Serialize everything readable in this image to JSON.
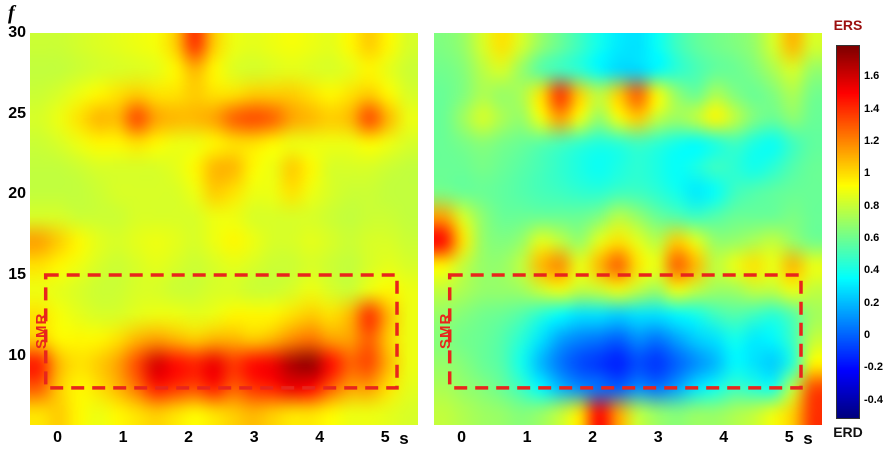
{
  "figure": {
    "y_axis_title": "f",
    "x_axis_unit": "s",
    "annotation": {
      "label": "SMR",
      "color": "#e8251c",
      "box_t": [
        -0.18,
        5.18
      ],
      "box_f": [
        8,
        15
      ]
    },
    "colorbar": {
      "top_label": "ERS",
      "bottom_label": "ERD",
      "top_label_color": "#9b0f0f",
      "bottom_label_color": "#111111",
      "tick_labels": [
        "1.6",
        "1.4",
        "1.2",
        "1",
        "0.8",
        "0.6",
        "0.4",
        "0.2",
        "0",
        "-0.2",
        "-0.4"
      ],
      "tick_values": [
        1.6,
        1.4,
        1.2,
        1,
        0.8,
        0.6,
        0.4,
        0.2,
        0,
        -0.2,
        -0.4
      ],
      "range": [
        -0.5,
        1.8
      ]
    }
  },
  "chart_data": {
    "type": "heatmap",
    "colormap": "jet",
    "x_tick_labels": [
      "0",
      "1",
      "2",
      "3",
      "4",
      "5"
    ],
    "x_tick_values": [
      0,
      1,
      2,
      3,
      4,
      5
    ],
    "y_tick_labels": [
      "30",
      "25",
      "20",
      "15",
      "10"
    ],
    "y_tick_values": [
      30,
      25,
      20,
      15,
      10
    ],
    "x_range": [
      -0.42,
      5.5
    ],
    "y_range": [
      5.7,
      30
    ],
    "value_range": [
      -0.5,
      1.8
    ],
    "grid_t": [
      -0.4,
      -0.1,
      0.2,
      0.5,
      0.8,
      1.1,
      1.4,
      1.7,
      2.0,
      2.3,
      2.6,
      2.9,
      3.2,
      3.5,
      3.8,
      4.1,
      4.4,
      4.7,
      5.0,
      5.3
    ],
    "grid_f": [
      30,
      28.5,
      27,
      25.5,
      24,
      22.5,
      21,
      19.5,
      18,
      16.5,
      15,
      13.5,
      12,
      10.5,
      9,
      7.5
    ],
    "panels": [
      {
        "name": "left-ers",
        "values": [
          [
            0.82,
            0.82,
            0.84,
            0.86,
            0.88,
            0.9,
            0.92,
            1.05,
            1.4,
            1.05,
            0.9,
            0.88,
            0.9,
            0.92,
            0.9,
            0.88,
            0.95,
            1.05,
            0.95,
            0.85
          ],
          [
            0.8,
            0.8,
            0.82,
            0.84,
            0.85,
            0.86,
            0.88,
            0.95,
            1.1,
            0.95,
            0.86,
            0.84,
            0.86,
            0.88,
            0.86,
            0.85,
            0.88,
            0.95,
            0.88,
            0.82
          ],
          [
            0.82,
            0.85,
            0.9,
            0.95,
            1.0,
            1.05,
            1.0,
            1.0,
            1.05,
            1.0,
            1.0,
            1.05,
            1.05,
            1.05,
            1.0,
            0.95,
            1.0,
            1.05,
            0.95,
            0.85
          ],
          [
            0.85,
            0.9,
            1.0,
            1.1,
            1.1,
            1.35,
            1.15,
            1.1,
            1.1,
            1.15,
            1.3,
            1.35,
            1.3,
            1.15,
            1.1,
            1.05,
            1.1,
            1.35,
            1.1,
            0.9
          ],
          [
            0.82,
            0.85,
            0.9,
            0.95,
            0.95,
            1.0,
            0.95,
            0.9,
            0.9,
            0.95,
            1.0,
            1.0,
            0.95,
            0.9,
            0.9,
            0.9,
            0.9,
            0.95,
            0.9,
            0.85
          ],
          [
            0.8,
            0.8,
            0.82,
            0.85,
            0.85,
            0.85,
            0.85,
            0.88,
            0.95,
            1.1,
            1.1,
            0.95,
            0.9,
            1.05,
            0.95,
            0.85,
            0.85,
            0.85,
            0.82,
            0.8
          ],
          [
            0.8,
            0.8,
            0.8,
            0.82,
            0.85,
            0.85,
            0.85,
            0.85,
            0.9,
            1.05,
            1.0,
            0.9,
            0.9,
            1.0,
            0.9,
            0.85,
            0.82,
            0.82,
            0.8,
            0.8
          ],
          [
            0.85,
            0.85,
            0.82,
            0.82,
            0.82,
            0.85,
            0.85,
            0.85,
            0.85,
            0.9,
            0.9,
            0.85,
            0.85,
            0.85,
            0.85,
            0.82,
            0.8,
            0.82,
            0.82,
            0.8
          ],
          [
            1.15,
            1.05,
            0.95,
            0.88,
            0.85,
            0.88,
            0.9,
            0.88,
            0.85,
            0.9,
            0.95,
            0.9,
            0.85,
            0.85,
            0.88,
            0.85,
            0.82,
            0.85,
            0.85,
            0.82
          ],
          [
            1.0,
            0.95,
            0.9,
            0.85,
            0.82,
            0.85,
            0.88,
            0.85,
            0.82,
            0.85,
            0.88,
            0.85,
            0.82,
            0.82,
            0.85,
            0.82,
            0.8,
            0.85,
            0.88,
            0.85
          ],
          [
            0.9,
            0.88,
            0.85,
            0.82,
            0.82,
            0.85,
            0.85,
            0.82,
            0.82,
            0.85,
            0.85,
            0.82,
            0.82,
            0.85,
            0.9,
            0.85,
            0.82,
            0.9,
            0.95,
            0.9
          ],
          [
            1.0,
            0.92,
            0.88,
            0.85,
            0.85,
            0.88,
            0.9,
            0.9,
            0.88,
            0.9,
            0.95,
            0.95,
            0.95,
            1.0,
            1.05,
            1.0,
            1.1,
            1.4,
            1.1,
            0.9
          ],
          [
            1.05,
            0.95,
            0.95,
            0.95,
            1.0,
            1.1,
            1.15,
            1.1,
            1.05,
            1.1,
            1.1,
            1.05,
            1.1,
            1.2,
            1.25,
            1.15,
            1.15,
            1.3,
            1.05,
            0.9
          ],
          [
            1.45,
            1.1,
            1.0,
            1.05,
            1.15,
            1.35,
            1.6,
            1.5,
            1.45,
            1.55,
            1.4,
            1.5,
            1.55,
            1.7,
            1.75,
            1.5,
            1.3,
            1.35,
            1.1,
            0.9
          ],
          [
            1.3,
            1.05,
            0.95,
            1.0,
            1.1,
            1.25,
            1.45,
            1.4,
            1.35,
            1.45,
            1.3,
            1.4,
            1.45,
            1.55,
            1.5,
            1.3,
            1.15,
            1.15,
            1.0,
            0.88
          ],
          [
            1.0,
            1.05,
            0.95,
            0.9,
            0.95,
            1.0,
            1.05,
            1.0,
            0.95,
            1.0,
            1.05,
            1.1,
            1.05,
            1.0,
            1.0,
            0.95,
            0.9,
            0.9,
            0.88,
            0.85
          ]
        ]
      },
      {
        "name": "right-erd",
        "values": [
          [
            0.65,
            0.7,
            0.85,
            1.0,
            0.85,
            0.7,
            0.6,
            0.5,
            0.4,
            0.32,
            0.3,
            0.38,
            0.5,
            0.58,
            0.62,
            0.65,
            0.7,
            0.85,
            1.1,
            0.85
          ],
          [
            0.62,
            0.66,
            0.78,
            0.85,
            0.7,
            0.55,
            0.5,
            0.45,
            0.35,
            0.28,
            0.28,
            0.35,
            0.45,
            0.52,
            0.58,
            0.6,
            0.65,
            0.75,
            0.85,
            0.7
          ],
          [
            0.6,
            0.65,
            0.75,
            0.7,
            0.75,
            1.0,
            1.4,
            1.05,
            0.8,
            1.05,
            1.3,
            0.95,
            0.7,
            0.6,
            0.75,
            0.65,
            0.6,
            0.65,
            0.75,
            0.62
          ],
          [
            0.6,
            0.72,
            0.85,
            0.75,
            0.7,
            0.9,
            1.15,
            0.9,
            0.7,
            0.9,
            1.05,
            0.8,
            0.72,
            0.8,
            0.95,
            0.8,
            0.65,
            0.6,
            0.68,
            0.6
          ],
          [
            0.6,
            0.63,
            0.67,
            0.63,
            0.6,
            0.56,
            0.52,
            0.47,
            0.43,
            0.45,
            0.5,
            0.46,
            0.4,
            0.36,
            0.42,
            0.5,
            0.42,
            0.38,
            0.5,
            0.58
          ],
          [
            0.6,
            0.6,
            0.63,
            0.6,
            0.56,
            0.52,
            0.47,
            0.42,
            0.38,
            0.42,
            0.46,
            0.42,
            0.37,
            0.42,
            0.5,
            0.46,
            0.4,
            0.46,
            0.55,
            0.6
          ],
          [
            0.63,
            0.6,
            0.6,
            0.58,
            0.55,
            0.52,
            0.5,
            0.47,
            0.46,
            0.5,
            0.5,
            0.46,
            0.4,
            0.32,
            0.37,
            0.5,
            0.55,
            0.58,
            0.6,
            0.6
          ],
          [
            1.15,
            0.85,
            0.68,
            0.6,
            0.6,
            0.6,
            0.6,
            0.6,
            0.65,
            0.78,
            0.7,
            0.6,
            0.55,
            0.5,
            0.55,
            0.6,
            0.6,
            0.6,
            0.64,
            0.6
          ],
          [
            1.5,
            1.0,
            0.7,
            0.65,
            0.7,
            0.88,
            0.8,
            0.7,
            0.88,
            1.0,
            0.88,
            0.78,
            1.05,
            0.88,
            0.7,
            0.7,
            0.75,
            0.8,
            0.7,
            0.62
          ],
          [
            0.95,
            0.8,
            0.7,
            0.7,
            0.8,
            1.1,
            1.2,
            0.9,
            1.1,
            1.3,
            1.0,
            0.9,
            1.3,
            1.1,
            0.8,
            0.9,
            1.0,
            0.9,
            1.1,
            0.9
          ],
          [
            0.8,
            0.75,
            0.7,
            0.7,
            0.72,
            0.82,
            0.9,
            0.8,
            0.82,
            0.9,
            0.8,
            0.72,
            0.9,
            0.8,
            0.72,
            0.72,
            0.8,
            0.8,
            0.9,
            0.8
          ],
          [
            0.7,
            0.66,
            0.62,
            0.6,
            0.55,
            0.45,
            0.36,
            0.3,
            0.3,
            0.26,
            0.3,
            0.3,
            0.35,
            0.4,
            0.5,
            0.55,
            0.5,
            0.45,
            0.55,
            0.72
          ],
          [
            0.66,
            0.62,
            0.6,
            0.55,
            0.45,
            0.3,
            0.15,
            0.08,
            0.05,
            0.0,
            0.1,
            0.05,
            0.15,
            0.25,
            0.3,
            0.4,
            0.32,
            0.35,
            0.5,
            0.8
          ],
          [
            0.7,
            0.66,
            0.6,
            0.55,
            0.4,
            0.2,
            0.05,
            -0.05,
            -0.1,
            -0.15,
            -0.05,
            -0.1,
            0.0,
            0.1,
            0.2,
            0.35,
            0.3,
            0.25,
            0.45,
            0.95
          ],
          [
            0.75,
            0.7,
            0.66,
            0.6,
            0.5,
            0.35,
            0.2,
            0.1,
            0.05,
            0.0,
            0.1,
            0.05,
            0.15,
            0.3,
            0.4,
            0.5,
            0.45,
            0.42,
            0.8,
            1.35
          ],
          [
            0.8,
            0.76,
            0.72,
            0.7,
            0.66,
            0.7,
            0.8,
            1.0,
            1.5,
            1.15,
            0.8,
            0.7,
            0.66,
            0.7,
            0.7,
            0.75,
            0.8,
            0.9,
            1.05,
            1.4
          ]
        ]
      }
    ]
  }
}
